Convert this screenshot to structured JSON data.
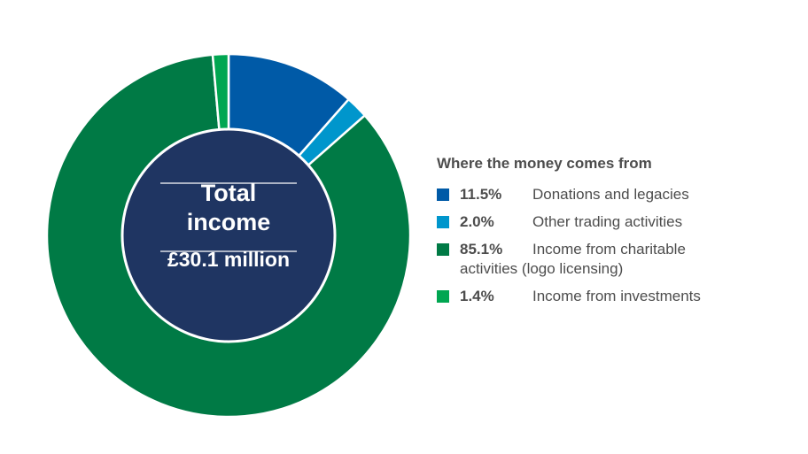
{
  "chart_data": {
    "type": "pie",
    "donut": true,
    "center": {
      "line1": "Total",
      "line2": "income",
      "value": "£30.1 million",
      "fill_color": "#1f3562"
    },
    "legend_title": "Where the money comes from",
    "legend_placement": "right",
    "slices": [
      {
        "value": 11.5,
        "pct_label": "11.5%",
        "label": "Donations and legacies",
        "color": "#005aa7"
      },
      {
        "value": 2.0,
        "pct_label": "2.0%",
        "label": "Other trading activities",
        "color": "#0096cc"
      },
      {
        "value": 85.1,
        "pct_label": "85.1%",
        "label": "Income from charitable",
        "label_cont": "activities (logo licensing)",
        "color": "#007a45"
      },
      {
        "value": 1.4,
        "pct_label": "1.4%",
        "label": "Income from investments",
        "color": "#00a651"
      }
    ]
  }
}
